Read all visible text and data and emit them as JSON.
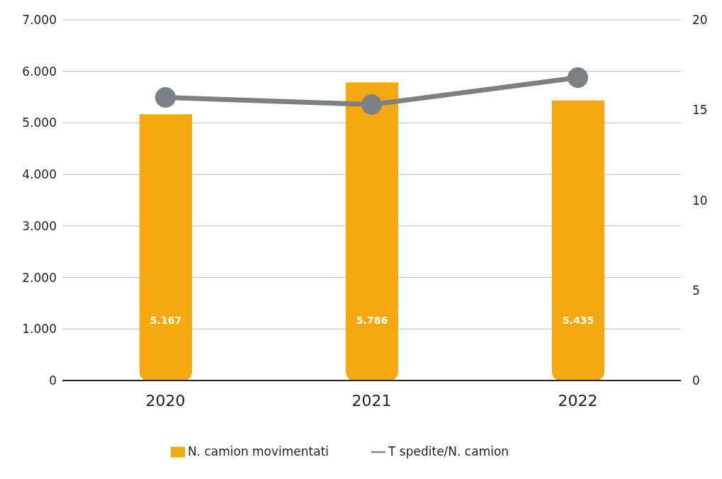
{
  "chart_data": {
    "type": "bar",
    "categories": [
      "2020",
      "2021",
      "2022"
    ],
    "series": [
      {
        "name": "N. camion movimentati",
        "color": "#f6a810",
        "values": [
          5167,
          5786,
          5435
        ],
        "value_labels": [
          "5.167",
          "5.786",
          "5.435"
        ]
      },
      {
        "name": "T spedite/N. camion",
        "type": "line",
        "axis": "y2",
        "color": "#7b8184",
        "values": [
          15.7,
          15.3,
          16.8
        ]
      }
    ],
    "ylim": [
      0,
      7000
    ],
    "yticks": [
      {
        "value": 0,
        "label": "0"
      },
      {
        "value": 1000,
        "label": "1.000"
      },
      {
        "value": 2000,
        "label": "2.000"
      },
      {
        "value": 3000,
        "label": "3.000"
      },
      {
        "value": 4000,
        "label": "4.000"
      },
      {
        "value": 5000,
        "label": "5.000"
      },
      {
        "value": 6000,
        "label": "6.000"
      },
      {
        "value": 7000,
        "label": "7.000"
      }
    ],
    "y2lim": [
      0,
      20
    ],
    "y2ticks": [
      0,
      5,
      10,
      15,
      20
    ],
    "grid": "y",
    "legend": "bottom",
    "marker": "circle",
    "line_style": "solid"
  }
}
